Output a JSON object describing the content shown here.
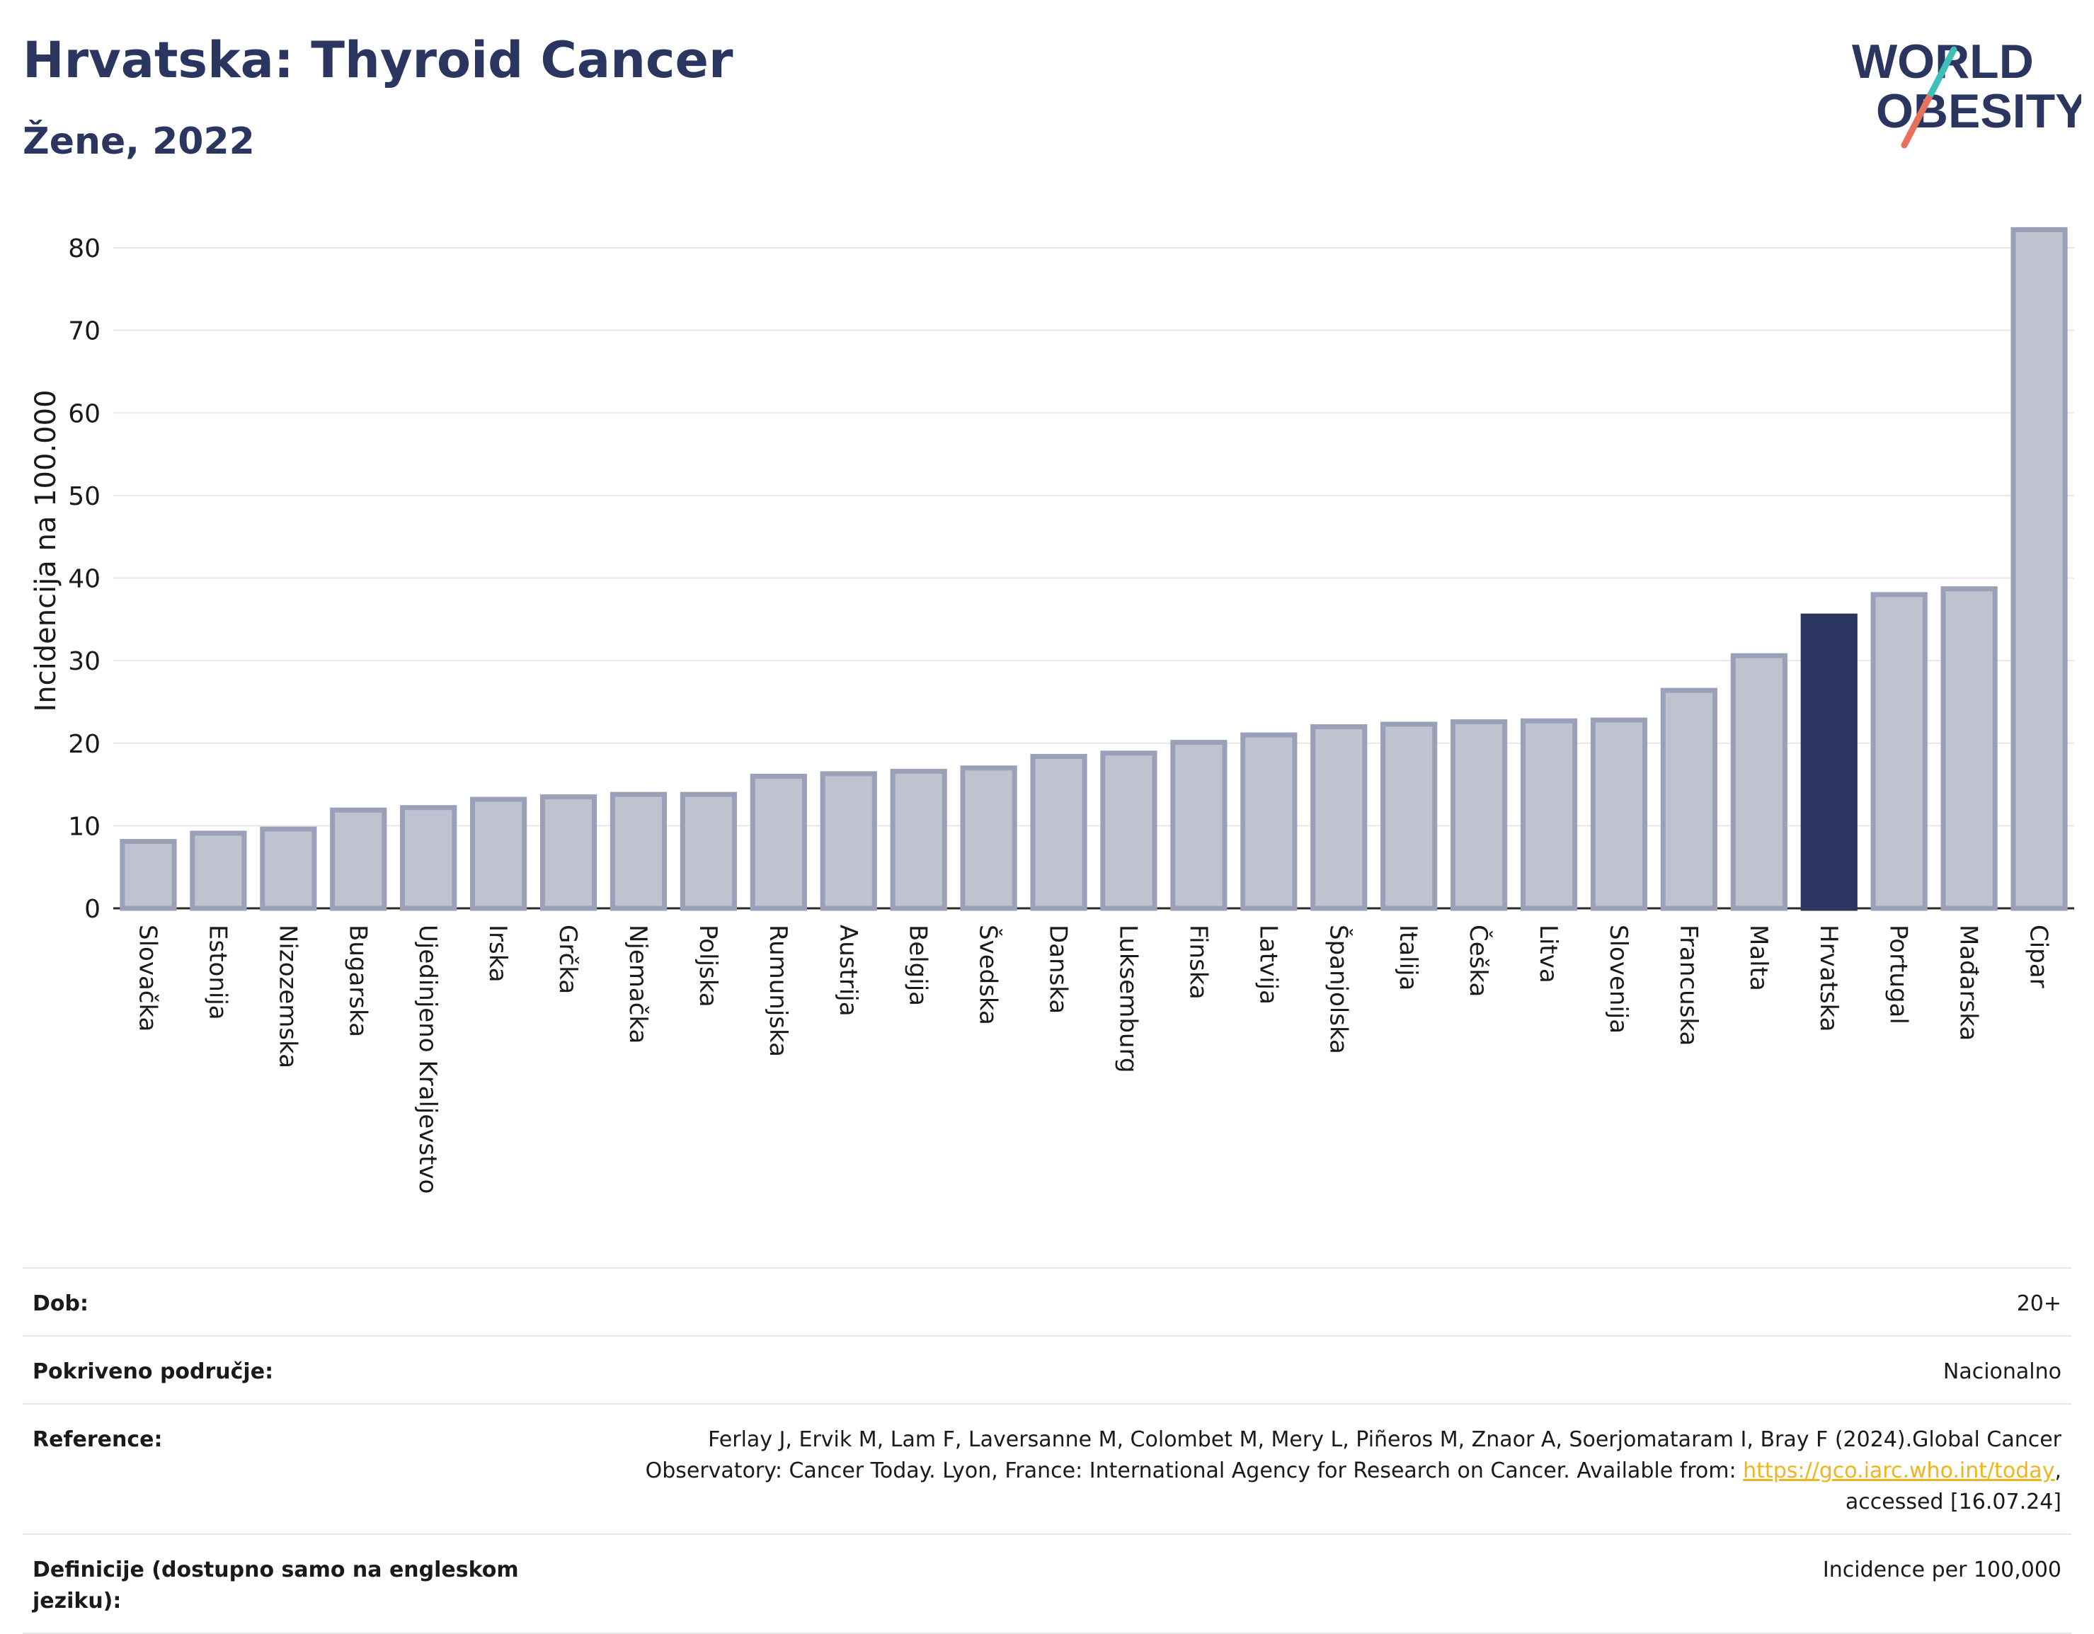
{
  "header": {
    "title": "Hrvatska: Thyroid Cancer",
    "subtitle": "Žene, 2022",
    "logo_line1": "WORLD",
    "logo_line2": "OBESITY"
  },
  "colors": {
    "bar_default": "#bfc3d0",
    "bar_border": "#9aa0b8",
    "bar_highlight": "#2b3660",
    "title": "#2b3660",
    "link": "#f0b41e"
  },
  "chart_data": {
    "type": "bar",
    "ylabel": "Incidencija na 100.000",
    "xlabel": "",
    "ylim": [
      0,
      83
    ],
    "yticks": [
      0,
      10,
      20,
      30,
      40,
      50,
      60,
      70,
      80
    ],
    "grid": true,
    "highlight": "Hrvatska",
    "categories": [
      "Slovačka",
      "Estonija",
      "Nizozemska",
      "Bugarska",
      "Ujedinjeno Kraljevstvo",
      "Irska",
      "Grčka",
      "Njemačka",
      "Poljska",
      "Rumunjska",
      "Austrija",
      "Belgija",
      "Švedska",
      "Danska",
      "Luksemburg",
      "Finska",
      "Latvija",
      "Španjolska",
      "Italija",
      "Češka",
      "Litva",
      "Slovenija",
      "Francuska",
      "Malta",
      "Hrvatska",
      "Portugal",
      "Mađarska",
      "Cipar"
    ],
    "values": [
      8.1,
      9.1,
      9.6,
      11.9,
      12.2,
      13.2,
      13.5,
      13.8,
      13.8,
      16.0,
      16.3,
      16.6,
      17.0,
      18.4,
      18.8,
      20.1,
      21.0,
      22.0,
      22.3,
      22.6,
      22.7,
      22.8,
      26.4,
      30.6,
      35.4,
      38.0,
      38.7,
      82.2
    ]
  },
  "info": {
    "age_label": "Dob:",
    "age_value": "20+",
    "coverage_label": "Pokriveno područje:",
    "coverage_value": "Nacionalno",
    "reference_label": "Reference:",
    "reference_text": "Ferlay J, Ervik M, Lam F, Laversanne M, Colombet M, Mery L, Piñeros M, Znaor A, Soerjomataram I, Bray F (2024).Global Cancer Observatory: Cancer Today. Lyon, France: International Agency for Research on Cancer. Available from:",
    "reference_link": "https://gco.iarc.who.int/today",
    "reference_suffix": ", accessed [16.07.24]",
    "definitions_label": "Definicije (dostupno samo na engleskom jeziku):",
    "definitions_value": "Incidence per 100,000"
  }
}
